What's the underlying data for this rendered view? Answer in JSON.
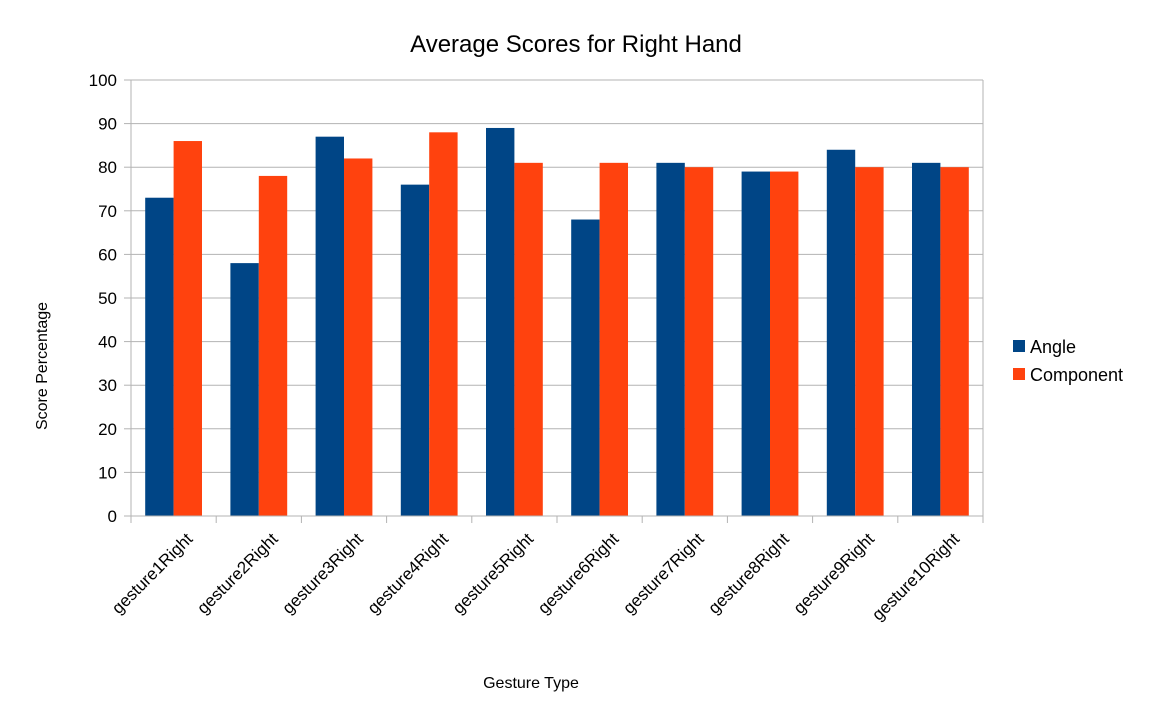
{
  "chart_data": {
    "type": "bar",
    "title": "Average Scores for Right Hand",
    "xlabel": "Gesture Type",
    "ylabel": "Score Percentage",
    "categories": [
      "gesture1Right",
      "gesture2Right",
      "gesture3Right",
      "gesture4Right",
      "gesture5Right",
      "gesture6Right",
      "gesture7Right",
      "gesture8Right",
      "gesture9Right",
      "gesture10Right"
    ],
    "series": [
      {
        "name": "Angle",
        "color": "#004586",
        "values": [
          73,
          58,
          87,
          76,
          89,
          68,
          81,
          79,
          84,
          81
        ]
      },
      {
        "name": "Component",
        "color": "#ff420e",
        "values": [
          86,
          78,
          82,
          88,
          81,
          81,
          80,
          79,
          80,
          80
        ]
      }
    ],
    "ylim": [
      0,
      100
    ],
    "yticks": [
      0,
      10,
      20,
      30,
      40,
      50,
      60,
      70,
      80,
      90,
      100
    ],
    "grid": true,
    "legend_position": "right"
  }
}
